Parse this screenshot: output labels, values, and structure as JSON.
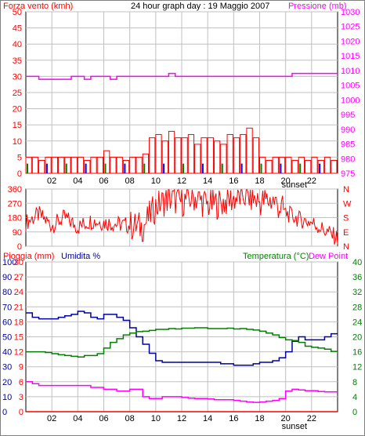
{
  "header": {
    "title": "24 hour graph day : 19 Maggio 2007",
    "wind_label": "Forza vento (kmh)",
    "pressure_label": "Pressione (mb)",
    "rain_label": "Pioggia (mm)",
    "humidity_label": "Umidita %",
    "temp_label": "Temperatura (°C)",
    "dew_label": "Dew Point",
    "sunset_label": "sunset"
  },
  "colors": {
    "wind": "#ff0000",
    "pressure": "#ff00ff",
    "humidity": "#0000a0",
    "temperature": "#008000",
    "dewpoint": "#ff00ff",
    "rain": "#ff0000",
    "gust_blue": "#0000ff",
    "gust_green": "#008000"
  },
  "x_ticks": [
    "02",
    "04",
    "06",
    "08",
    "10",
    "12",
    "14",
    "16",
    "18",
    "20",
    "22"
  ],
  "chart_data": [
    {
      "type": "bar",
      "title": "24 hour graph day : 19 Maggio 2007",
      "ylabel": "Forza vento (kmh)",
      "ylim": [
        0,
        50
      ],
      "yticks": [
        0,
        5,
        10,
        15,
        20,
        25,
        30,
        35,
        40,
        45,
        50
      ],
      "y2label": "Pressione (mb)",
      "y2lim": [
        975,
        1030
      ],
      "y2ticks": [
        975,
        980,
        985,
        990,
        995,
        1000,
        1005,
        1010,
        1015,
        1020,
        1025,
        1030
      ],
      "x": [
        0,
        0.5,
        1,
        1.5,
        2,
        2.5,
        3,
        3.5,
        4,
        4.5,
        5,
        5.5,
        6,
        6.5,
        7,
        7.5,
        8,
        8.5,
        9,
        9.5,
        10,
        10.5,
        11,
        11.5,
        12,
        12.5,
        13,
        13.5,
        14,
        14.5,
        15,
        15.5,
        16,
        16.5,
        17,
        17.5,
        18,
        18.5,
        19,
        19.5,
        20,
        20.5,
        21,
        21.5,
        22,
        22.5,
        23,
        23.5
      ],
      "series": [
        {
          "values": [
            5,
            5,
            4,
            5,
            5,
            5,
            5,
            5,
            5,
            4,
            5,
            5,
            7,
            5,
            5,
            4,
            5,
            5,
            6,
            11,
            12,
            10,
            13,
            11,
            11,
            12,
            9,
            11,
            11,
            10,
            9,
            12,
            11,
            12,
            14,
            11,
            5,
            4,
            5,
            5,
            5,
            4,
            5,
            4,
            5,
            4,
            5,
            4
          ]
        },
        {
          "values": [
            1008,
            1008,
            1007,
            1007,
            1007,
            1007,
            1007,
            1008,
            1008,
            1007,
            1008,
            1008,
            1008,
            1007,
            1008,
            1008,
            1008,
            1008,
            1008,
            1008,
            1008,
            1008,
            1009,
            1008,
            1008,
            1008,
            1008,
            1008,
            1008,
            1008,
            1008,
            1008,
            1008,
            1008,
            1008,
            1008,
            1008,
            1008,
            1008,
            1008,
            1008,
            1009,
            1009,
            1009,
            1009,
            1009,
            1009,
            1009
          ]
        }
      ],
      "sunset_hour": 20
    },
    {
      "type": "line",
      "ylabel": "N W S E N",
      "ylim": [
        0,
        360
      ],
      "yticks": [
        0,
        90,
        180,
        270,
        360
      ],
      "y2ticks": [
        "N",
        "E",
        "S",
        "W",
        "N"
      ],
      "x": [
        0,
        1,
        2,
        3,
        4,
        5,
        6,
        7,
        8,
        9,
        10,
        11,
        12,
        13,
        14,
        15,
        16,
        17,
        18,
        19,
        20,
        21,
        22,
        23
      ],
      "series": [
        {
          "values": [
            150,
            200,
            130,
            180,
            120,
            160,
            150,
            140,
            130,
            120,
            250,
            300,
            280,
            310,
            260,
            270,
            300,
            320,
            280,
            290,
            210,
            170,
            150,
            100
          ]
        }
      ]
    },
    {
      "type": "line",
      "ylabel": "Pioggia (mm) / Umidita %",
      "ylim": [
        0,
        100
      ],
      "yticks": [
        0,
        10,
        20,
        30,
        40,
        50,
        60,
        70,
        80,
        90,
        100
      ],
      "y1b_ticks": [
        0,
        3,
        6,
        9,
        12,
        15,
        18,
        21,
        24,
        27,
        30
      ],
      "y2label": "Temperatura (°C) / Dew Point",
      "y2lim": [
        0,
        40
      ],
      "y2ticks": [
        0,
        4,
        8,
        12,
        16,
        20,
        24,
        28,
        32,
        36,
        40
      ],
      "x": [
        0,
        0.5,
        1,
        1.5,
        2,
        2.5,
        3,
        3.5,
        4,
        4.5,
        5,
        5.5,
        6,
        6.5,
        7,
        7.5,
        8,
        8.5,
        9,
        9.5,
        10,
        10.5,
        11,
        11.5,
        12,
        12.5,
        13,
        13.5,
        14,
        14.5,
        15,
        15.5,
        16,
        16.5,
        17,
        17.5,
        18,
        18.5,
        19,
        19.5,
        20,
        20.5,
        21,
        21.5,
        22,
        22.5,
        23,
        23.5
      ],
      "series": [
        {
          "name": "Umidita %",
          "values": [
            66,
            63,
            62,
            62,
            62,
            63,
            64,
            65,
            67,
            66,
            63,
            62,
            65,
            65,
            63,
            61,
            56,
            50,
            45,
            39,
            34,
            33,
            33,
            33,
            33,
            33,
            33,
            33,
            33,
            33,
            32,
            32,
            31,
            31,
            31,
            32,
            33,
            33,
            34,
            36,
            40,
            47,
            50,
            48,
            48,
            48,
            50,
            52
          ]
        },
        {
          "name": "Temperatura (°C)",
          "values": [
            16,
            16,
            16,
            15.8,
            15.5,
            15.2,
            15,
            14.8,
            14.6,
            15,
            15,
            15.5,
            17,
            18.5,
            19.5,
            20.5,
            21,
            21.4,
            21.5,
            21.7,
            22,
            22,
            22.2,
            22.1,
            22.3,
            22.3,
            22.4,
            22.4,
            22.2,
            22.2,
            22.2,
            22.3,
            22.1,
            22.2,
            22,
            21.8,
            21.5,
            21,
            20.5,
            19.8,
            19.2,
            19,
            18.5,
            17.5,
            17.2,
            17,
            16.7,
            16.1
          ]
        },
        {
          "name": "Dew Point",
          "values": [
            8,
            7.5,
            7,
            7,
            7,
            7,
            7,
            7,
            7,
            7,
            6.5,
            6.5,
            6,
            6,
            5.5,
            5.5,
            6,
            6,
            4,
            3.5,
            3.5,
            4,
            4,
            4,
            3.8,
            3.6,
            3.5,
            3.5,
            3.4,
            3.2,
            3.2,
            3.2,
            3,
            2.8,
            2.6,
            2.5,
            2.6,
            2.8,
            3,
            3.5,
            5.5,
            6,
            5.8,
            5.6,
            5.6,
            5.4,
            5.3,
            5.3
          ]
        },
        {
          "name": "Pioggia (mm)",
          "values": [
            0,
            0,
            0,
            0,
            0,
            0,
            0,
            0,
            0,
            0,
            0,
            0,
            0,
            0,
            0,
            0,
            0,
            0,
            0,
            0,
            0,
            0,
            0,
            0,
            0,
            0,
            0,
            0,
            0,
            0,
            0,
            0,
            0,
            0,
            0,
            0,
            0,
            0,
            0,
            0,
            0,
            0,
            0,
            0,
            0,
            0,
            0,
            0
          ]
        }
      ],
      "sunset_hour": 20
    }
  ]
}
